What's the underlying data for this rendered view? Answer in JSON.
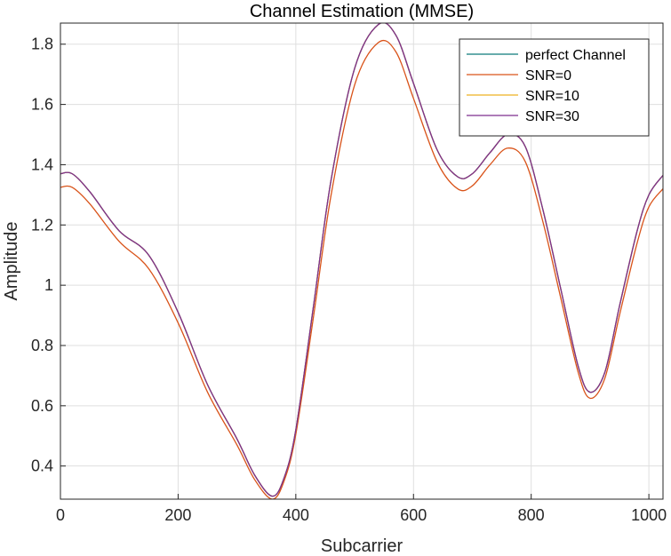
{
  "chart_data": {
    "type": "line",
    "title": "Channel Estimation (MMSE)",
    "xlabel": "Subcarrier",
    "ylabel": "Amplitude",
    "xlim": [
      0,
      1024
    ],
    "ylim": [
      0.29,
      1.87
    ],
    "xticks": [
      0,
      200,
      400,
      600,
      800,
      1000
    ],
    "yticks": [
      0.4,
      0.6,
      0.8,
      1,
      1.2,
      1.4,
      1.6,
      1.8
    ],
    "xtick_labels": [
      "0",
      "200",
      "400",
      "600",
      "800",
      "1000"
    ],
    "ytick_labels": [
      "0.4",
      "0.6",
      "0.8",
      "1",
      "1.2",
      "1.4",
      "1.6",
      "1.8"
    ],
    "grid": true,
    "legend_position": "top-right",
    "x": [
      0,
      20,
      50,
      100,
      150,
      200,
      250,
      300,
      330,
      360,
      380,
      400,
      430,
      460,
      500,
      540,
      570,
      600,
      640,
      675,
      700,
      730,
      760,
      790,
      820,
      850,
      880,
      900,
      925,
      950,
      980,
      1000,
      1024
    ],
    "series": [
      {
        "name": "perfect Channel",
        "color": "#0c7a7a",
        "values": [
          1.37,
          1.37,
          1.31,
          1.18,
          1.1,
          0.91,
          0.67,
          0.49,
          0.37,
          0.3,
          0.36,
          0.52,
          0.93,
          1.35,
          1.72,
          1.865,
          1.83,
          1.67,
          1.45,
          1.36,
          1.37,
          1.44,
          1.5,
          1.46,
          1.25,
          0.99,
          0.73,
          0.645,
          0.71,
          0.93,
          1.18,
          1.3,
          1.365
        ]
      },
      {
        "name": "SNR=0",
        "color": "#d95319",
        "values": [
          1.325,
          1.325,
          1.27,
          1.145,
          1.055,
          0.875,
          0.645,
          0.47,
          0.355,
          0.29,
          0.35,
          0.505,
          0.895,
          1.3,
          1.665,
          1.805,
          1.775,
          1.62,
          1.41,
          1.32,
          1.33,
          1.4,
          1.455,
          1.41,
          1.21,
          0.96,
          0.71,
          0.625,
          0.69,
          0.9,
          1.14,
          1.26,
          1.32
        ]
      },
      {
        "name": "SNR=10",
        "color": "#edb120",
        "values": [
          1.37,
          1.37,
          1.31,
          1.18,
          1.1,
          0.91,
          0.67,
          0.49,
          0.37,
          0.3,
          0.36,
          0.52,
          0.93,
          1.35,
          1.72,
          1.865,
          1.83,
          1.67,
          1.45,
          1.36,
          1.37,
          1.44,
          1.5,
          1.46,
          1.25,
          0.99,
          0.73,
          0.645,
          0.71,
          0.93,
          1.18,
          1.3,
          1.365
        ]
      },
      {
        "name": "SNR=30",
        "color": "#7e2f8e",
        "values": [
          1.37,
          1.37,
          1.31,
          1.18,
          1.1,
          0.91,
          0.67,
          0.49,
          0.37,
          0.3,
          0.36,
          0.52,
          0.93,
          1.35,
          1.72,
          1.865,
          1.83,
          1.67,
          1.45,
          1.36,
          1.37,
          1.44,
          1.5,
          1.46,
          1.25,
          0.99,
          0.73,
          0.645,
          0.71,
          0.93,
          1.18,
          1.3,
          1.365
        ]
      }
    ]
  }
}
